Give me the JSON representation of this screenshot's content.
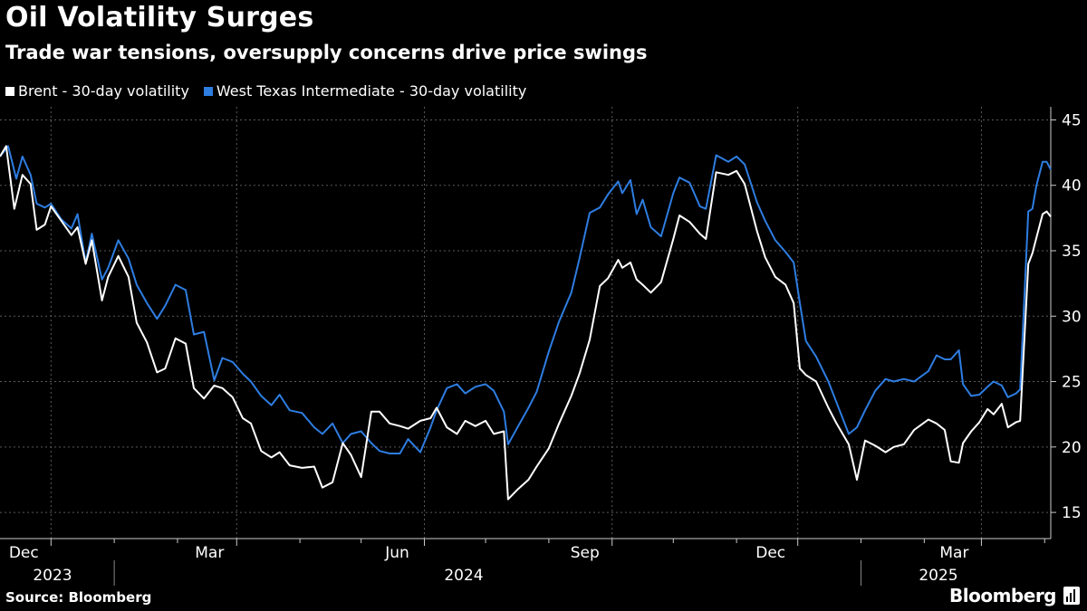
{
  "title": "Oil Volatility Surges",
  "subtitle": "Trade war tensions, oversupply concerns drive price swings",
  "source": "Source: Bloomberg",
  "brand": "Bloomberg",
  "chart_data": {
    "type": "line",
    "title": "Oil Volatility Surges",
    "subtitle": "Trade war tensions, oversupply concerns drive price swings",
    "x_start": "2023-11-06",
    "x_end": "2025-04-04",
    "ylim": [
      13,
      46
    ],
    "yticks": [
      15,
      20,
      25,
      30,
      35,
      40,
      45
    ],
    "y_axis_side": "right",
    "grid": true,
    "legend_position": "top-left",
    "x_month_ticks": [
      {
        "date": "2023-12-01",
        "label": "Dec"
      },
      {
        "date": "2024-03-01",
        "label": "Mar"
      },
      {
        "date": "2024-06-01",
        "label": "Jun"
      },
      {
        "date": "2024-09-01",
        "label": "Sep"
      },
      {
        "date": "2024-12-01",
        "label": "Dec"
      },
      {
        "date": "2025-03-01",
        "label": "Mar"
      }
    ],
    "x_minor_ticks": [
      "2024-01-01",
      "2024-02-01",
      "2024-04-01",
      "2024-05-01",
      "2024-07-01",
      "2024-08-01",
      "2024-10-01",
      "2024-11-01",
      "2025-01-01",
      "2025-02-01",
      "2025-04-01"
    ],
    "x_year_labels": [
      {
        "date": "2023-11-06",
        "label": "2023"
      },
      {
        "date": "2024-01-01",
        "label": "2024"
      },
      {
        "date": "2025-01-01",
        "label": "2025"
      }
    ],
    "x_year_dividers": [
      "2024-01-01",
      "2025-01-01"
    ],
    "series": [
      {
        "name": "West Texas Intermediate - 30-day volatility",
        "color": "#2e7de1",
        "points": [
          [
            "2023-11-06",
            42.2
          ],
          [
            "2023-11-10",
            43.0
          ],
          [
            "2023-11-14",
            40.5
          ],
          [
            "2023-11-17",
            42.2
          ],
          [
            "2023-11-21",
            40.8
          ],
          [
            "2023-11-24",
            38.6
          ],
          [
            "2023-11-28",
            38.3
          ],
          [
            "2023-12-01",
            38.6
          ],
          [
            "2023-12-06",
            37.4
          ],
          [
            "2023-12-11",
            36.7
          ],
          [
            "2023-12-14",
            37.8
          ],
          [
            "2023-12-18",
            34.1
          ],
          [
            "2023-12-21",
            36.3
          ],
          [
            "2023-12-26",
            32.8
          ],
          [
            "2023-12-29",
            33.7
          ],
          [
            "2024-01-03",
            35.8
          ],
          [
            "2024-01-08",
            34.4
          ],
          [
            "2024-01-12",
            32.4
          ],
          [
            "2024-01-17",
            31.0
          ],
          [
            "2024-01-22",
            29.8
          ],
          [
            "2024-01-26",
            30.8
          ],
          [
            "2024-01-31",
            32.4
          ],
          [
            "2024-02-05",
            32.0
          ],
          [
            "2024-02-09",
            28.6
          ],
          [
            "2024-02-14",
            28.8
          ],
          [
            "2024-02-19",
            25.1
          ],
          [
            "2024-02-23",
            26.8
          ],
          [
            "2024-02-28",
            26.5
          ],
          [
            "2024-03-04",
            25.6
          ],
          [
            "2024-03-08",
            25.0
          ],
          [
            "2024-03-13",
            23.9
          ],
          [
            "2024-03-18",
            23.2
          ],
          [
            "2024-03-22",
            24.0
          ],
          [
            "2024-03-27",
            22.8
          ],
          [
            "2024-04-02",
            22.6
          ],
          [
            "2024-04-08",
            21.5
          ],
          [
            "2024-04-12",
            21.0
          ],
          [
            "2024-04-17",
            21.8
          ],
          [
            "2024-04-22",
            20.3
          ],
          [
            "2024-04-26",
            21.0
          ],
          [
            "2024-05-01",
            21.2
          ],
          [
            "2024-05-06",
            20.3
          ],
          [
            "2024-05-10",
            19.7
          ],
          [
            "2024-05-15",
            19.5
          ],
          [
            "2024-05-20",
            19.5
          ],
          [
            "2024-05-24",
            20.6
          ],
          [
            "2024-05-30",
            19.6
          ],
          [
            "2024-06-04",
            21.5
          ],
          [
            "2024-06-07",
            22.8
          ],
          [
            "2024-06-12",
            24.5
          ],
          [
            "2024-06-17",
            24.8
          ],
          [
            "2024-06-21",
            24.1
          ],
          [
            "2024-06-26",
            24.6
          ],
          [
            "2024-07-01",
            24.8
          ],
          [
            "2024-07-05",
            24.3
          ],
          [
            "2024-07-10",
            22.7
          ],
          [
            "2024-07-12",
            20.2
          ],
          [
            "2024-07-17",
            21.6
          ],
          [
            "2024-07-22",
            23.0
          ],
          [
            "2024-07-26",
            24.2
          ],
          [
            "2024-08-01",
            27.3
          ],
          [
            "2024-08-06",
            29.6
          ],
          [
            "2024-08-12",
            31.8
          ],
          [
            "2024-08-16",
            34.4
          ],
          [
            "2024-08-21",
            37.9
          ],
          [
            "2024-08-26",
            38.3
          ],
          [
            "2024-08-30",
            39.3
          ],
          [
            "2024-09-04",
            40.3
          ],
          [
            "2024-09-06",
            39.4
          ],
          [
            "2024-09-10",
            40.4
          ],
          [
            "2024-09-13",
            37.8
          ],
          [
            "2024-09-16",
            38.9
          ],
          [
            "2024-09-20",
            36.8
          ],
          [
            "2024-09-25",
            36.1
          ],
          [
            "2024-10-01",
            39.4
          ],
          [
            "2024-10-04",
            40.6
          ],
          [
            "2024-10-09",
            40.2
          ],
          [
            "2024-10-14",
            38.4
          ],
          [
            "2024-10-17",
            38.2
          ],
          [
            "2024-10-22",
            42.3
          ],
          [
            "2024-10-28",
            41.8
          ],
          [
            "2024-11-01",
            42.2
          ],
          [
            "2024-11-05",
            41.6
          ],
          [
            "2024-11-11",
            38.7
          ],
          [
            "2024-11-15",
            37.3
          ],
          [
            "2024-11-20",
            35.8
          ],
          [
            "2024-11-25",
            34.9
          ],
          [
            "2024-11-29",
            34.1
          ],
          [
            "2024-12-02",
            31.0
          ],
          [
            "2024-12-05",
            28.1
          ],
          [
            "2024-12-10",
            26.9
          ],
          [
            "2024-12-16",
            25.0
          ],
          [
            "2024-12-20",
            23.4
          ],
          [
            "2024-12-26",
            21.0
          ],
          [
            "2024-12-30",
            21.5
          ],
          [
            "2025-01-03",
            22.8
          ],
          [
            "2025-01-08",
            24.3
          ],
          [
            "2025-01-13",
            25.2
          ],
          [
            "2025-01-17",
            25.0
          ],
          [
            "2025-01-22",
            25.2
          ],
          [
            "2025-01-27",
            25.0
          ],
          [
            "2025-02-03",
            25.8
          ],
          [
            "2025-02-07",
            27.0
          ],
          [
            "2025-02-11",
            26.7
          ],
          [
            "2025-02-14",
            26.7
          ],
          [
            "2025-02-18",
            27.4
          ],
          [
            "2025-02-20",
            24.8
          ],
          [
            "2025-02-24",
            23.9
          ],
          [
            "2025-02-28",
            24.0
          ],
          [
            "2025-03-04",
            24.6
          ],
          [
            "2025-03-07",
            25.0
          ],
          [
            "2025-03-11",
            24.7
          ],
          [
            "2025-03-14",
            23.8
          ],
          [
            "2025-03-18",
            24.1
          ],
          [
            "2025-03-20",
            24.4
          ],
          [
            "2025-03-24",
            38.0
          ],
          [
            "2025-03-26",
            38.2
          ],
          [
            "2025-03-28",
            40.0
          ],
          [
            "2025-03-31",
            41.8
          ],
          [
            "2025-04-02",
            41.8
          ],
          [
            "2025-04-04",
            41.2
          ]
        ]
      },
      {
        "name": "Brent - 30-day volatility",
        "color": "#ffffff",
        "points": [
          [
            "2023-11-06",
            42.2
          ],
          [
            "2023-11-09",
            43.0
          ],
          [
            "2023-11-13",
            38.2
          ],
          [
            "2023-11-17",
            40.8
          ],
          [
            "2023-11-21",
            40.1
          ],
          [
            "2023-11-24",
            36.6
          ],
          [
            "2023-11-28",
            37.0
          ],
          [
            "2023-12-01",
            38.4
          ],
          [
            "2023-12-06",
            37.3
          ],
          [
            "2023-12-11",
            36.2
          ],
          [
            "2023-12-14",
            36.8
          ],
          [
            "2023-12-18",
            34.0
          ],
          [
            "2023-12-21",
            35.8
          ],
          [
            "2023-12-26",
            31.2
          ],
          [
            "2023-12-29",
            33.0
          ],
          [
            "2024-01-03",
            34.6
          ],
          [
            "2024-01-08",
            33.0
          ],
          [
            "2024-01-12",
            29.5
          ],
          [
            "2024-01-17",
            28.0
          ],
          [
            "2024-01-22",
            25.7
          ],
          [
            "2024-01-26",
            26.0
          ],
          [
            "2024-01-31",
            28.3
          ],
          [
            "2024-02-05",
            27.9
          ],
          [
            "2024-02-09",
            24.5
          ],
          [
            "2024-02-14",
            23.7
          ],
          [
            "2024-02-19",
            24.7
          ],
          [
            "2024-02-23",
            24.5
          ],
          [
            "2024-02-28",
            23.8
          ],
          [
            "2024-03-04",
            22.2
          ],
          [
            "2024-03-08",
            21.8
          ],
          [
            "2024-03-13",
            19.7
          ],
          [
            "2024-03-18",
            19.2
          ],
          [
            "2024-03-22",
            19.6
          ],
          [
            "2024-03-27",
            18.6
          ],
          [
            "2024-04-02",
            18.4
          ],
          [
            "2024-04-08",
            18.5
          ],
          [
            "2024-04-12",
            16.9
          ],
          [
            "2024-04-17",
            17.3
          ],
          [
            "2024-04-22",
            20.3
          ],
          [
            "2024-04-26",
            19.4
          ],
          [
            "2024-05-01",
            17.7
          ],
          [
            "2024-05-06",
            22.7
          ],
          [
            "2024-05-10",
            22.7
          ],
          [
            "2024-05-15",
            21.8
          ],
          [
            "2024-05-20",
            21.6
          ],
          [
            "2024-05-24",
            21.4
          ],
          [
            "2024-05-30",
            22.0
          ],
          [
            "2024-06-04",
            22.2
          ],
          [
            "2024-06-07",
            23.0
          ],
          [
            "2024-06-12",
            21.5
          ],
          [
            "2024-06-17",
            21.0
          ],
          [
            "2024-06-21",
            22.0
          ],
          [
            "2024-06-26",
            21.6
          ],
          [
            "2024-07-01",
            22.0
          ],
          [
            "2024-07-05",
            21.0
          ],
          [
            "2024-07-10",
            21.2
          ],
          [
            "2024-07-12",
            16.0
          ],
          [
            "2024-07-17",
            16.8
          ],
          [
            "2024-07-22",
            17.5
          ],
          [
            "2024-07-26",
            18.5
          ],
          [
            "2024-08-01",
            19.9
          ],
          [
            "2024-08-06",
            21.8
          ],
          [
            "2024-08-12",
            23.9
          ],
          [
            "2024-08-16",
            25.6
          ],
          [
            "2024-08-21",
            28.2
          ],
          [
            "2024-08-26",
            32.3
          ],
          [
            "2024-08-30",
            32.9
          ],
          [
            "2024-09-04",
            34.3
          ],
          [
            "2024-09-06",
            33.7
          ],
          [
            "2024-09-10",
            34.1
          ],
          [
            "2024-09-13",
            32.8
          ],
          [
            "2024-09-16",
            32.4
          ],
          [
            "2024-09-20",
            31.8
          ],
          [
            "2024-09-25",
            32.6
          ],
          [
            "2024-10-01",
            35.9
          ],
          [
            "2024-10-04",
            37.7
          ],
          [
            "2024-10-09",
            37.2
          ],
          [
            "2024-10-14",
            36.3
          ],
          [
            "2024-10-17",
            35.9
          ],
          [
            "2024-10-22",
            41.0
          ],
          [
            "2024-10-28",
            40.8
          ],
          [
            "2024-11-01",
            41.1
          ],
          [
            "2024-11-05",
            40.1
          ],
          [
            "2024-11-11",
            36.5
          ],
          [
            "2024-11-15",
            34.5
          ],
          [
            "2024-11-20",
            33.0
          ],
          [
            "2024-11-25",
            32.4
          ],
          [
            "2024-11-29",
            31.0
          ],
          [
            "2024-12-02",
            26.0
          ],
          [
            "2024-12-05",
            25.5
          ],
          [
            "2024-12-10",
            25.0
          ],
          [
            "2024-12-16",
            23.0
          ],
          [
            "2024-12-20",
            21.8
          ],
          [
            "2024-12-26",
            20.2
          ],
          [
            "2024-12-30",
            17.5
          ],
          [
            "2025-01-03",
            20.5
          ],
          [
            "2025-01-08",
            20.1
          ],
          [
            "2025-01-13",
            19.6
          ],
          [
            "2025-01-17",
            20.0
          ],
          [
            "2025-01-22",
            20.2
          ],
          [
            "2025-01-27",
            21.3
          ],
          [
            "2025-02-03",
            22.1
          ],
          [
            "2025-02-07",
            21.8
          ],
          [
            "2025-02-11",
            21.3
          ],
          [
            "2025-02-14",
            18.9
          ],
          [
            "2025-02-18",
            18.8
          ],
          [
            "2025-02-20",
            20.3
          ],
          [
            "2025-02-24",
            21.2
          ],
          [
            "2025-02-28",
            21.9
          ],
          [
            "2025-03-04",
            22.9
          ],
          [
            "2025-03-07",
            22.5
          ],
          [
            "2025-03-11",
            23.3
          ],
          [
            "2025-03-14",
            21.5
          ],
          [
            "2025-03-18",
            21.9
          ],
          [
            "2025-03-20",
            22.0
          ],
          [
            "2025-03-24",
            34.0
          ],
          [
            "2025-03-26",
            34.8
          ],
          [
            "2025-03-28",
            36.0
          ],
          [
            "2025-03-31",
            37.8
          ],
          [
            "2025-04-02",
            38.0
          ],
          [
            "2025-04-04",
            37.6
          ]
        ]
      }
    ]
  }
}
